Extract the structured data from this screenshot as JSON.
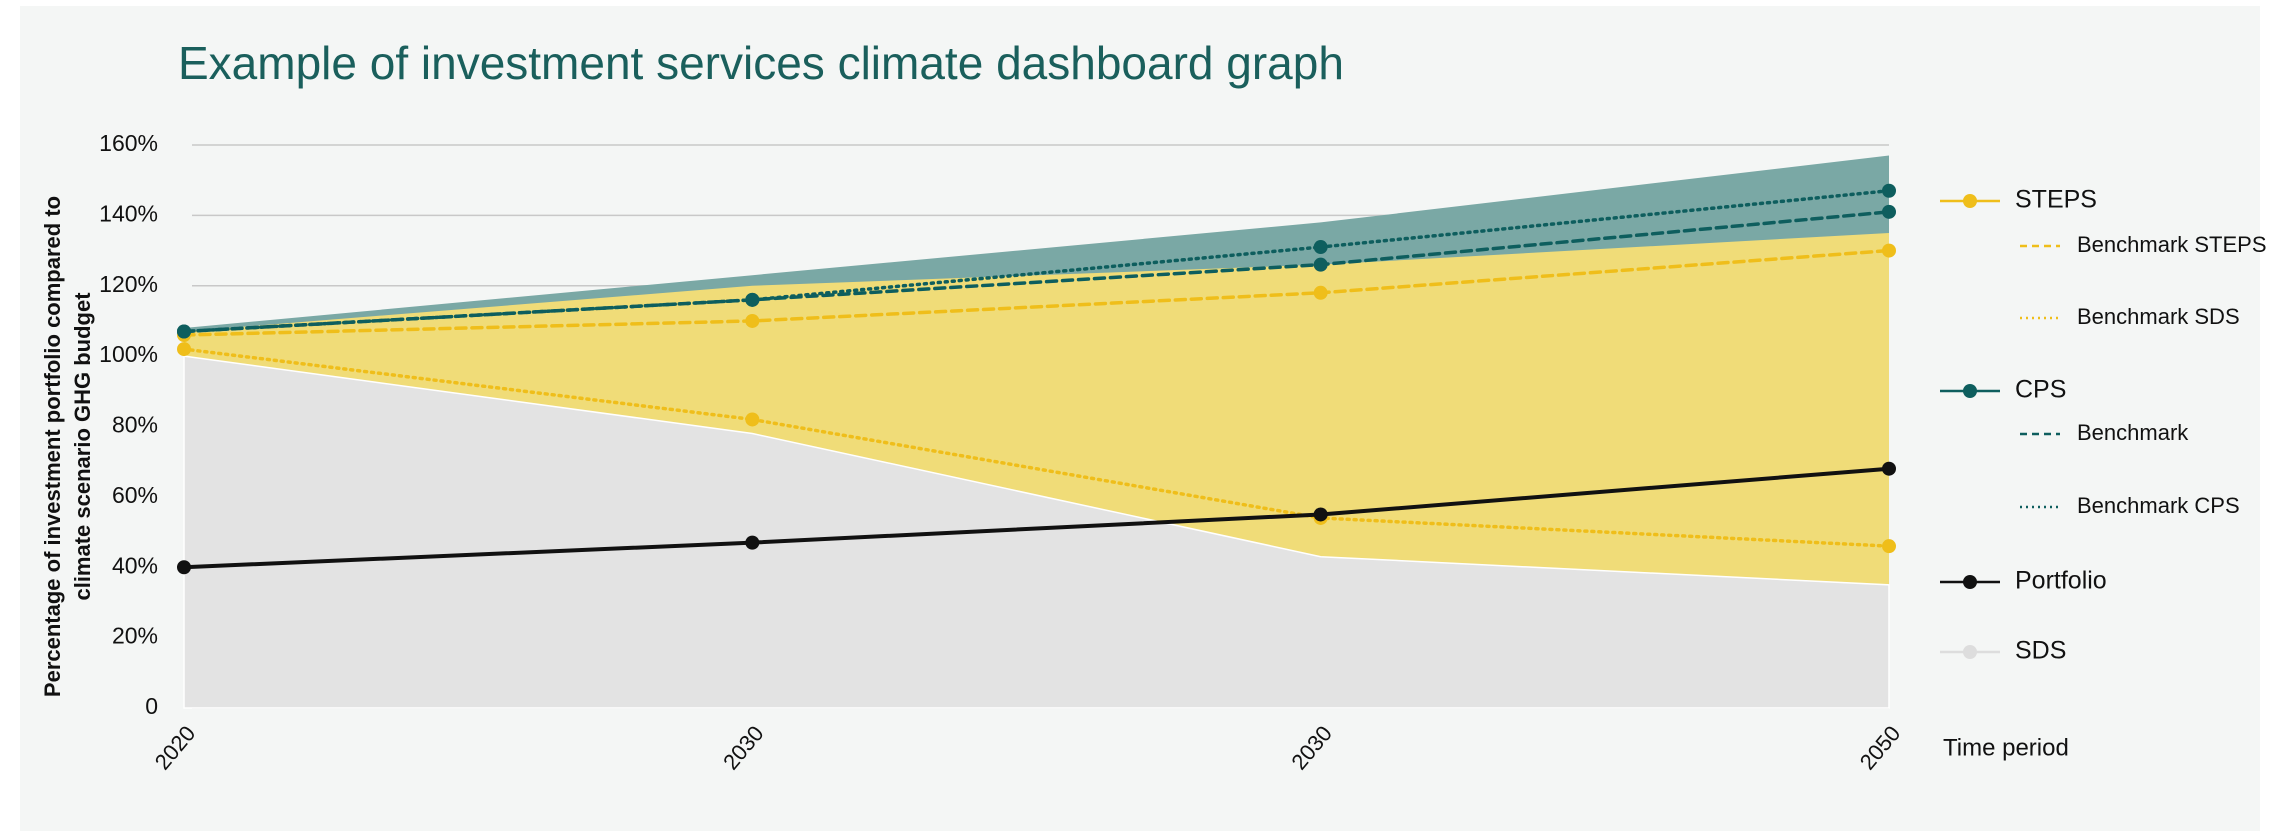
{
  "chart_data": {
    "type": "area-line",
    "title": "Example of investment services climate dashboard graph",
    "y_label": [
      "Percentage of investment portfolio compared to",
      "climate scenario GHG budget"
    ],
    "x_label": "Time period",
    "categories": [
      "2020",
      "2030",
      "2030",
      "2050"
    ],
    "ylim": [
      0,
      160
    ],
    "yticks": [
      0,
      {
        "value": 20,
        "label": "20%"
      },
      {
        "value": 40,
        "label": "40%"
      },
      {
        "value": 60,
        "label": "60%"
      },
      {
        "value": 80,
        "label": "80%"
      },
      {
        "value": 100,
        "label": "100%"
      },
      {
        "value": 120,
        "label": "120%"
      },
      {
        "value": 140,
        "label": "140%"
      },
      {
        "value": 160,
        "label": "160%"
      }
    ],
    "grid": true,
    "legend": "right",
    "series": [
      {
        "name": "STEPS",
        "kind": "area",
        "color": "#efbe1a",
        "fill": "#f0dc78",
        "values": [
          107,
          120,
          126,
          135
        ]
      },
      {
        "name": "Benchmark STEPS",
        "kind": "line",
        "dash": "dashed",
        "color": "#efbe1a",
        "values": [
          106,
          110,
          118,
          130
        ]
      },
      {
        "name": "Benchmark SDS",
        "kind": "line",
        "dash": "dotted",
        "color": "#efbe1a",
        "values": [
          102,
          82,
          54,
          46
        ]
      },
      {
        "name": "CPS",
        "kind": "area",
        "color": "#0e5e5e",
        "fill": "#7aa8a5",
        "values": [
          108,
          123,
          138,
          157
        ]
      },
      {
        "name": "Benchmark",
        "kind": "line",
        "dash": "dashed",
        "color": "#0e5e5e",
        "values": [
          107,
          116,
          126,
          141
        ]
      },
      {
        "name": "Benchmark CPS",
        "kind": "line",
        "dash": "dotted",
        "color": "#0e5e5e",
        "values": [
          107,
          116,
          131,
          147
        ]
      },
      {
        "name": "Portfolio",
        "kind": "line",
        "dash": "solid",
        "color": "#111111",
        "values": [
          40,
          47,
          55,
          68
        ]
      },
      {
        "name": "SDS",
        "kind": "area",
        "color": "#dddddd",
        "fill": "#e3e3e3",
        "values": [
          100,
          78,
          43,
          35
        ]
      }
    ]
  }
}
